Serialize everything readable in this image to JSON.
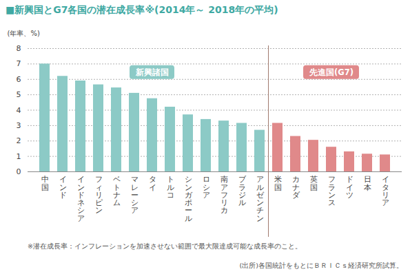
{
  "chart_data": {
    "type": "bar",
    "title": "■新興国とG7各国の潜在成長率※(2014年～ 2018年の平均)",
    "y_label": "(年率、%)",
    "categories": [
      "中国",
      "インド",
      "インドネシア",
      "フィリピン",
      "ベトナム",
      "マレーシア",
      "タイ",
      "トルコ",
      "シンガポール",
      "ロシア",
      "南アフリカ",
      "ブラジル",
      "アルゼンチン",
      "米国",
      "カナダ",
      "英国",
      "フランス",
      "ドイツ",
      "日本",
      "イタリア"
    ],
    "series": [
      {
        "name": "新興諸国",
        "color": "#8ccac6",
        "values": [
          7.0,
          6.2,
          5.9,
          5.65,
          5.45,
          5.1,
          4.75,
          4.2,
          3.7,
          3.4,
          3.3,
          3.15,
          2.7,
          null,
          null,
          null,
          null,
          null,
          null,
          null
        ]
      },
      {
        "name": "先進国(G7)",
        "color": "#e0898a",
        "values": [
          null,
          null,
          null,
          null,
          null,
          null,
          null,
          null,
          null,
          null,
          null,
          null,
          null,
          3.15,
          2.3,
          2.05,
          1.6,
          1.3,
          1.15,
          1.1
        ]
      }
    ],
    "ylim": [
      0,
      8
    ],
    "yticks": [
      0,
      1,
      2,
      3,
      4,
      5,
      6,
      7,
      8
    ],
    "grid": true,
    "footnote": "※潜在成長率：インフレーションを加速させない範囲で最大限達成可能な成長率のこと。",
    "source": "(出所)各国統計をもとにＢＲＩＣｓ経済研究所試算。"
  }
}
